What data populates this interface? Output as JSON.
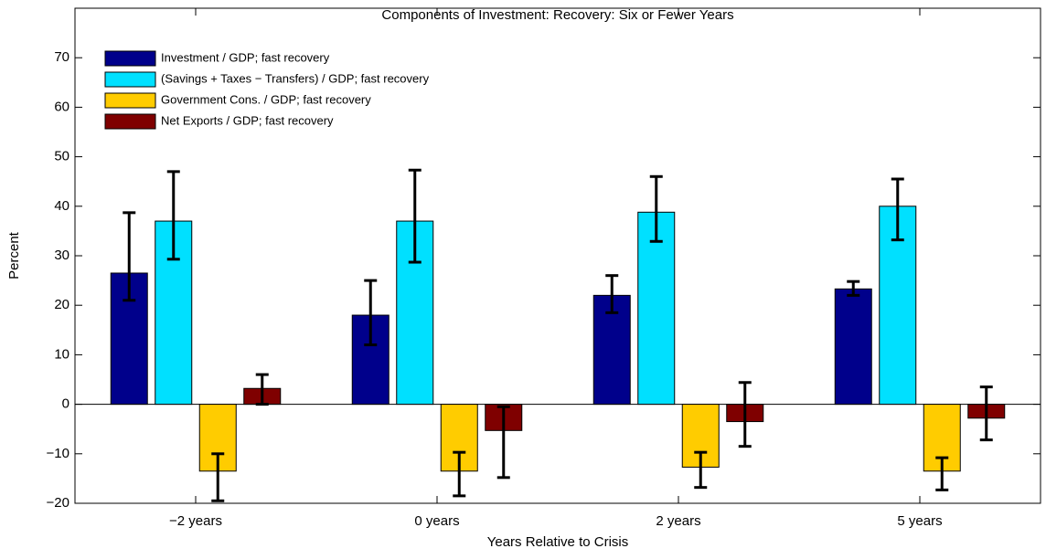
{
  "chart_data": {
    "type": "bar",
    "title": "Components of Investment: Recovery: Six or Fewer Years",
    "x_label": "Years Relative to Crisis",
    "y_label": "Percent",
    "categories": [
      "−2 years",
      "0 years",
      "2 years",
      "5 years"
    ],
    "series": [
      {
        "name": "Investment / GDP; fast recovery",
        "color": "#00008b",
        "values": [
          26.5,
          18,
          22,
          23.3
        ],
        "lower": [
          21,
          12,
          18.5,
          22
        ],
        "upper": [
          38.7,
          25,
          26,
          24.8
        ]
      },
      {
        "name": "(Savings + Taxes − Transfers) / GDP; fast recovery",
        "color": "#00e0ff",
        "values": [
          37,
          37,
          38.8,
          40
        ],
        "lower": [
          29.3,
          28.7,
          32.9,
          33.2
        ],
        "upper": [
          47,
          47.3,
          46,
          45.5
        ]
      },
      {
        "name": "Government Cons. / GDP; fast recovery",
        "color": "#ffcc00",
        "values": [
          -13.5,
          -13.5,
          -12.7,
          -13.5
        ],
        "lower": [
          -19.5,
          -18.5,
          -16.8,
          -17.3
        ],
        "upper": [
          -10,
          -9.7,
          -9.7,
          -10.8
        ]
      },
      {
        "name": "Net Exports / GDP; fast recovery",
        "color": "#7f0000",
        "values": [
          3.2,
          -5.3,
          -3.5,
          -2.8
        ],
        "lower": [
          0,
          -14.8,
          -8.5,
          -7.2
        ],
        "upper": [
          6,
          -0.5,
          4.4,
          3.5
        ]
      }
    ],
    "ylim": [
      -20,
      80
    ],
    "yticks": [
      {
        "value": -20,
        "label": "−20"
      },
      {
        "value": -10,
        "label": "−10"
      },
      0,
      10,
      20,
      30,
      40,
      50,
      60,
      70
    ],
    "grid": false,
    "legend": "upper-left"
  }
}
